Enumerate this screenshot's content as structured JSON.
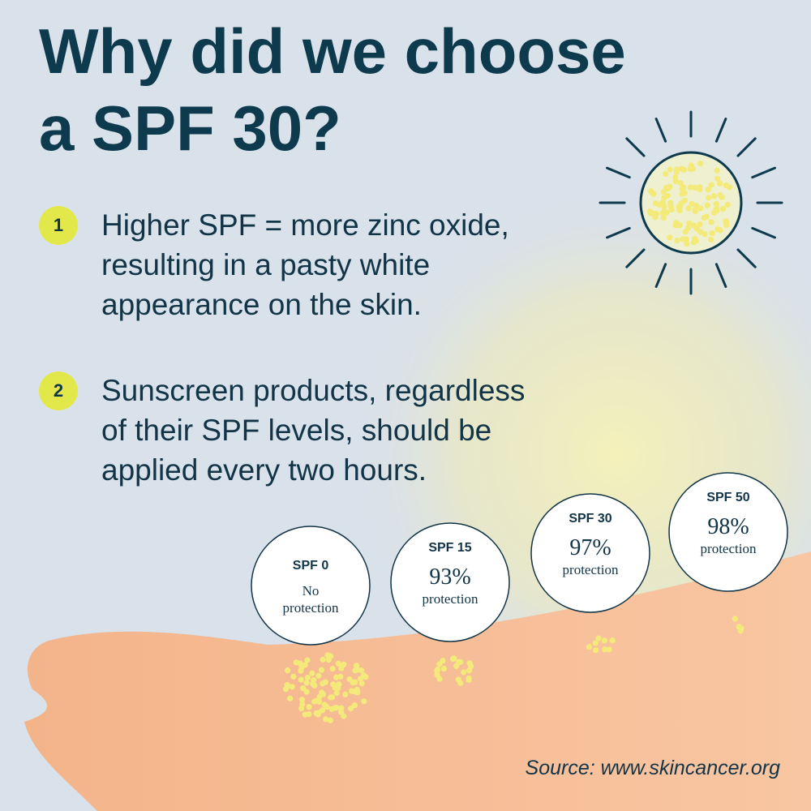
{
  "title_lines": [
    "Why did we choose",
    "a SPF 30?"
  ],
  "points": [
    {
      "number": 1,
      "lines": [
        "Higher SPF = more zinc oxide,",
        "resulting in a pasty white",
        "appearance on the skin."
      ]
    },
    {
      "number": 2,
      "lines": [
        "Sunscreen products, regardless",
        "of their SPF levels, should be",
        "applied every two hours."
      ]
    }
  ],
  "badges": [
    {
      "label": "SPF 0",
      "lines": [
        "No",
        "protection"
      ]
    },
    {
      "label": "SPF 15",
      "value": "93%",
      "lines": [
        "protection"
      ]
    },
    {
      "label": "SPF 30",
      "value": "97%",
      "lines": [
        "protection"
      ]
    },
    {
      "label": "SPF 50",
      "value": "98%",
      "lines": [
        "protection"
      ]
    }
  ],
  "source": "Source: www.skincancer.org"
}
